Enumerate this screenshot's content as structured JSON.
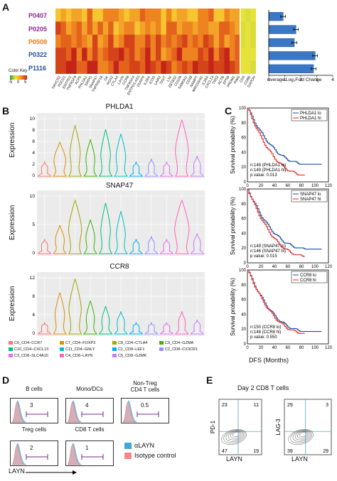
{
  "panels": {
    "A": "A",
    "B": "B",
    "C": "C",
    "D": "D",
    "E": "E"
  },
  "heatmap": {
    "samples": [
      {
        "name": "P0407",
        "color": "#8b2a8f"
      },
      {
        "name": "P0205",
        "color": "#8b2a8f"
      },
      {
        "name": "P0508",
        "color": "#f07a10"
      },
      {
        "name": "P0322",
        "color": "#1f4e9c"
      },
      {
        "name": "P1116",
        "color": "#1f4e9c"
      }
    ],
    "genes": [
      "HAVCR2",
      "PDCD1",
      "ENTPD1",
      "TNFRSF9",
      "ACP5",
      "PHLDA1",
      "SIRPG",
      "SNAP47",
      "TNFRSF18",
      "GK",
      "RGS2",
      "CTLA4",
      "LAYN",
      "CCR8",
      "TNFRSF4",
      "ENTPD1-AS1",
      "DUSP4",
      "IL2RA",
      "ICOS",
      "LAIR2",
      "TIGIT",
      "LTA",
      "ZBTB32",
      "CD109",
      "SAMSN1",
      "CD38",
      "NAMPT",
      "MIR155HG",
      "IL2RA",
      "CXCL13",
      "TNS3",
      "ACTB",
      "EPS8",
      "PRDM1",
      "PIM3",
      "CD4",
      "CD8B",
      "GAPDH"
    ],
    "key_title": "Color Key",
    "key_ticks": [
      "-5",
      "0",
      "5"
    ]
  },
  "barchart": {
    "xlabel": "Average Log₂Fold Change",
    "ticks": [
      "0",
      "1",
      "2",
      "3",
      "4"
    ]
  },
  "chart_data": {
    "type": "bar",
    "categories": [
      "P0407",
      "P0205",
      "P0508",
      "P0322",
      "P1116"
    ],
    "values": [
      0.9,
      1.7,
      1.6,
      2.9,
      2.8
    ],
    "errors": [
      0.15,
      0.15,
      0.15,
      0.15,
      0.15
    ],
    "xlabel": "Average Log₂Fold Change",
    "xlim": [
      0,
      4
    ],
    "orientation": "horizontal"
  },
  "violins": {
    "ylabel": "Expression",
    "plots": [
      {
        "title": "PHLDA1",
        "yticks": [
          "0",
          "2",
          "4",
          "6",
          "8",
          "10"
        ]
      },
      {
        "title": "SNAP47",
        "yticks": [
          "0",
          "5",
          "10"
        ]
      },
      {
        "title": "CCR8",
        "yticks": [
          "0",
          "4",
          "8",
          "12"
        ]
      }
    ],
    "clusters": [
      {
        "label": "C6_CD4−CCR7",
        "color": "#f8766d"
      },
      {
        "label": "C7_CD4−FOXP3",
        "color": "#d89000"
      },
      {
        "label": "C8_CD4−CTLA4",
        "color": "#a3a500"
      },
      {
        "label": "C9_CD4−GZMA",
        "color": "#39b600"
      },
      {
        "label": "C10_CD4−CXCL13",
        "color": "#00bf7d"
      },
      {
        "label": "C11_CD4−GNLY",
        "color": "#00bfc4"
      },
      {
        "label": "C1_CD8−LEF1",
        "color": "#00b0f6"
      },
      {
        "label": "C2_CD8−CX3CR1",
        "color": "#9590ff"
      },
      {
        "label": "C3_CD8−SLC4A10",
        "color": "#e76bf3"
      },
      {
        "label": "C4_CD8−LAYN",
        "color": "#ff62bc"
      },
      {
        "label": "C5_CD8−GZMK",
        "color": "#c77cff"
      }
    ]
  },
  "survival": {
    "ylabel": "Survival probability (%)",
    "xlabel": "DFS (Months)",
    "yticks": [
      "0",
      "20",
      "40",
      "60",
      "80",
      "100"
    ],
    "xticks": [
      "0",
      "20",
      "40",
      "60",
      "80",
      "100",
      "120"
    ],
    "plots": [
      {
        "lo": "PHLDA1 lo",
        "hi": "PHLDA1 hi",
        "n1": "n:148 (PHLDA1 lo)",
        "n2": "n:149 (PHLDA1 hi)",
        "p": "p value: 0.013"
      },
      {
        "lo": "SNAP47 lo",
        "hi": "SNAP47 hi",
        "n1": "n:149 (SNAP47 lo)",
        "n2": "n:146 (SNAP47 hi)",
        "p": "p value: 0.015"
      },
      {
        "lo": "CCR8 lo",
        "hi": "CCR8 hi",
        "n1": "n:150 (CCR8 lo)",
        "n2": "n:148 (CCR8 hi)",
        "p": "p value: 0.550"
      }
    ],
    "colors": {
      "lo": "#1f4e9c",
      "hi": "#e8281f"
    }
  },
  "facs_d": {
    "panels": [
      {
        "title": "B cells",
        "value": "3"
      },
      {
        "title": "Mono/DCs",
        "value": "4"
      },
      {
        "title": "Non-Treg\nCD4 T cells",
        "value": "0.5"
      },
      {
        "title": "Treg cells",
        "value": "2"
      },
      {
        "title": "CD8 T cells",
        "value": "1"
      }
    ],
    "legend": [
      {
        "label": "αLAYN",
        "color": "#3fa9d6"
      },
      {
        "label": "Isotype control",
        "color": "#f08a8a"
      }
    ],
    "xlabel": "LAYN"
  },
  "facs_e": {
    "title": "Day 2 CD8 T cells",
    "plots": [
      {
        "ylabel": "PD-1",
        "q": [
          "23",
          "11",
          "47",
          "19"
        ]
      },
      {
        "ylabel": "LAG-3",
        "q": [
          "29",
          "3",
          "39",
          "29"
        ]
      }
    ],
    "xlabel": "LAYN"
  }
}
